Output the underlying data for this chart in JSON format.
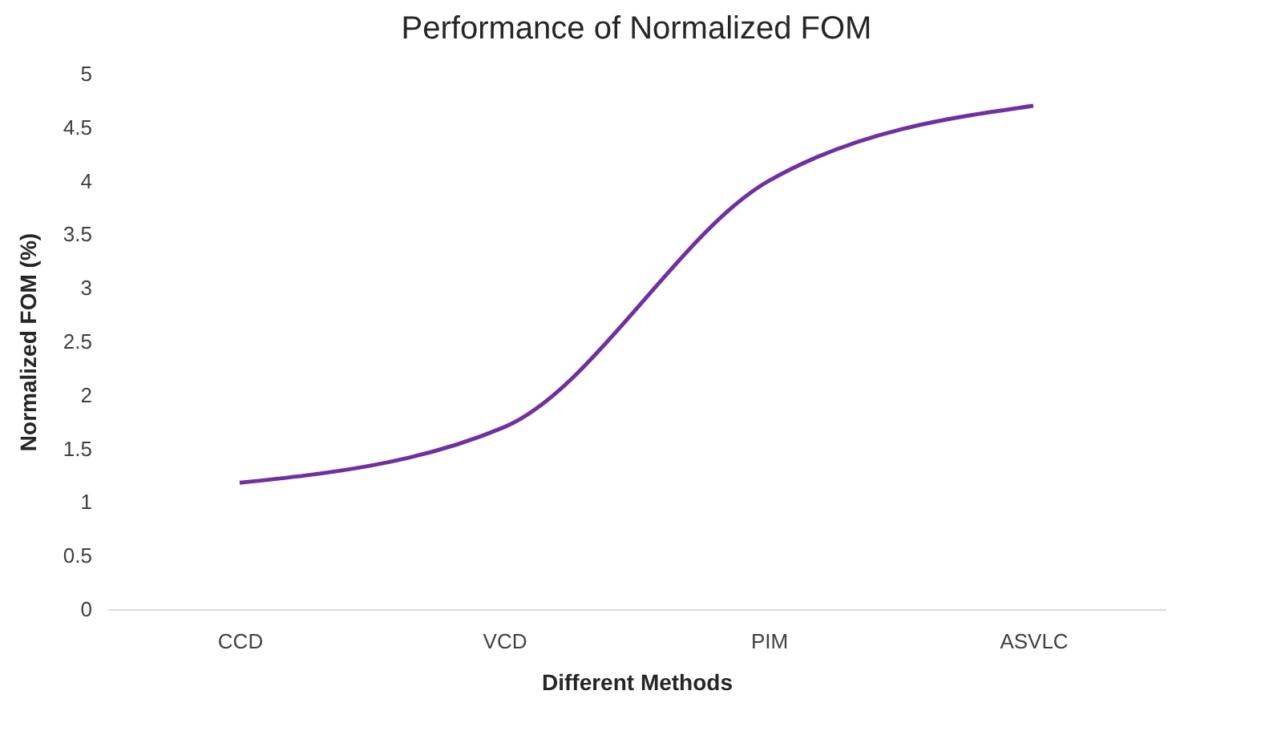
{
  "chart_data": {
    "type": "line",
    "title": "Performance of Normalized FOM",
    "xlabel": "Different Methods",
    "ylabel": "Normalized FOM (%)",
    "categories": [
      "CCD",
      "VCD",
      "PIM",
      "ASVLC"
    ],
    "series": [
      {
        "color": "#7030a0",
        "values": [
          1.18,
          1.7,
          4.0,
          4.7
        ]
      }
    ],
    "ylim": [
      0,
      5
    ],
    "yticks": [
      0,
      0.5,
      1,
      1.5,
      2,
      2.5,
      3,
      3.5,
      4,
      4.5,
      5
    ],
    "marker": "none",
    "line_style": "solid"
  }
}
